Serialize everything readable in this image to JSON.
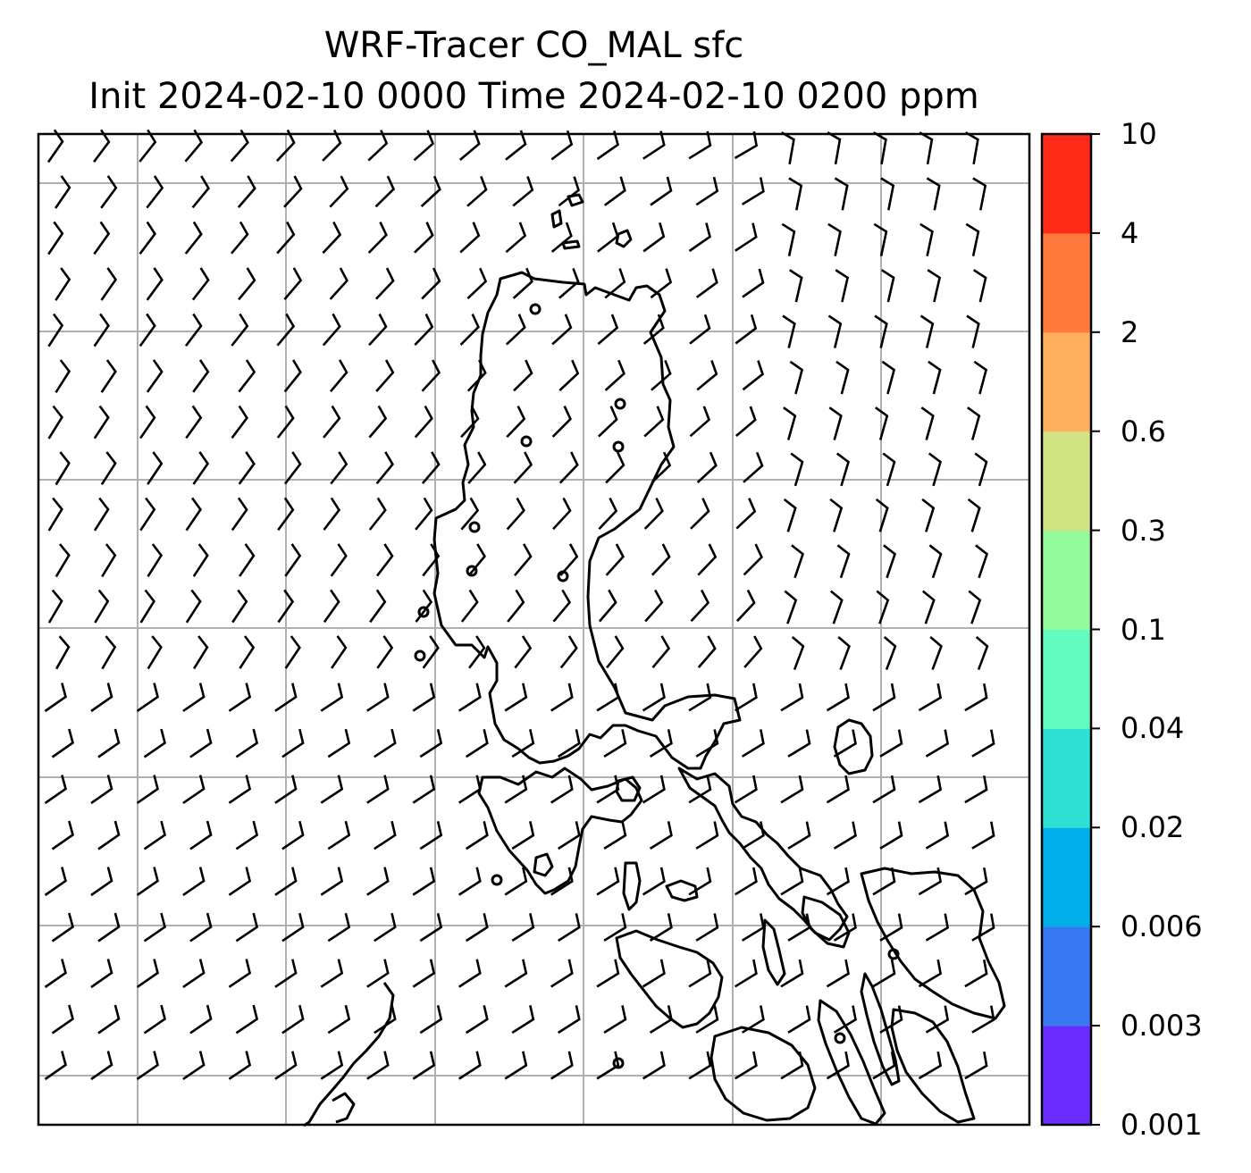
{
  "title_line1": "WRF-Tracer CO_MAL sfc",
  "title_line2": "Init 2024-02-10 0000 Time 2024-02-10 0200 ppm",
  "colorbar": {
    "levels": [
      "0.001",
      "0.003",
      "0.006",
      "0.02",
      "0.04",
      "0.1",
      "0.3",
      "0.6",
      "2",
      "4",
      "10"
    ],
    "colors": [
      "#6a2cff",
      "#3a78f2",
      "#00aeea",
      "#2fe1d4",
      "#63fbbf",
      "#95f99d",
      "#d2e383",
      "#ffb05f",
      "#ff7a3c",
      "#ff2a17"
    ]
  },
  "map": {
    "gridlines": true,
    "wind_barbs": true,
    "coastline_color": "#000000",
    "background": "#ffffff"
  }
}
